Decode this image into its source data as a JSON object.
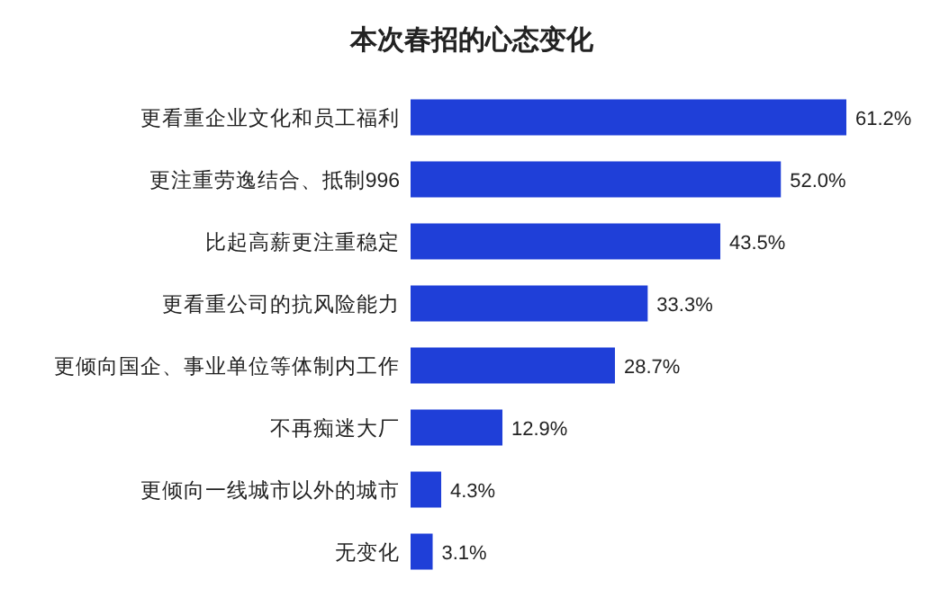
{
  "chart_data": {
    "type": "bar",
    "orientation": "horizontal",
    "title": "本次春招的心态变化",
    "categories": [
      "更看重企业文化和员工福利",
      "更注重劳逸结合、抵制996",
      "比起高薪更注重稳定",
      "更看重公司的抗风险能力",
      "更倾向国企、事业单位等体制内工作",
      "不再痴迷大厂",
      "更倾向一线城市以外的城市",
      "无变化"
    ],
    "values": [
      61.2,
      52.0,
      43.5,
      33.3,
      28.7,
      12.9,
      4.3,
      3.1
    ],
    "value_labels": [
      "61.2%",
      "52.0%",
      "43.5%",
      "33.3%",
      "28.7%",
      "12.9%",
      "4.3%",
      "3.1%"
    ],
    "color": "#1f3fd8"
  }
}
